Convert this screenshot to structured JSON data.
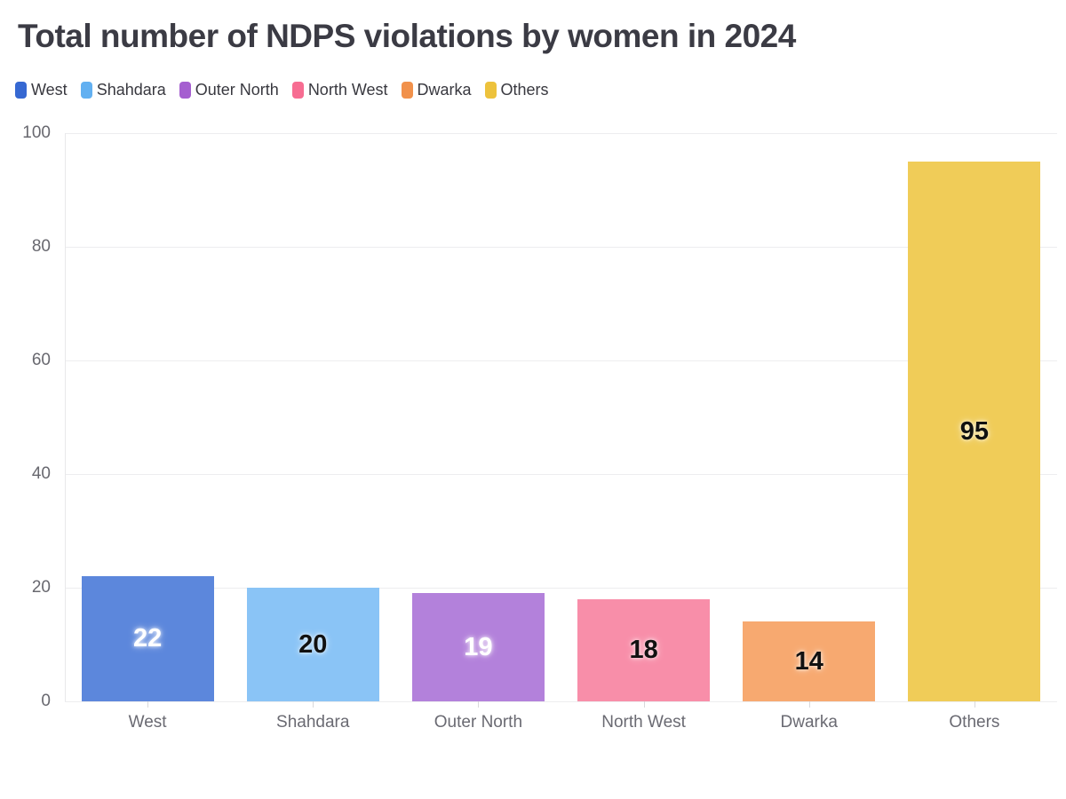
{
  "title": "Total number of NDPS violations by women in 2024",
  "chart_data": {
    "type": "bar",
    "title": "Total number of NDPS violations by women in 2024",
    "categories": [
      "West",
      "Shahdara",
      "Outer North",
      "North West",
      "Dwarka",
      "Others"
    ],
    "values": [
      22,
      20,
      19,
      18,
      14,
      95
    ],
    "legend": [
      "West",
      "Shahdara",
      "Outer North",
      "North West",
      "Dwarka",
      "Others"
    ],
    "legend_position": "top-left",
    "series_colors": [
      "#3668d2",
      "#62b0f1",
      "#a55fd0",
      "#f76d92",
      "#f1914b",
      "#edc23c"
    ],
    "bar_fill_colors": [
      "#5c87dc",
      "#8ac4f6",
      "#b381db",
      "#f88ea9",
      "#f7a970",
      "#f0cc58"
    ],
    "value_label_colors": [
      "#ffffff",
      "#111111",
      "#ffffff",
      "#111111",
      "#111111",
      "#111111"
    ],
    "xlabel": "",
    "ylabel": "",
    "ylim": [
      0,
      100
    ],
    "y_ticks": [
      0,
      20,
      40,
      60,
      80,
      100
    ],
    "grid": "horizontal-on"
  },
  "colors": {
    "background": "#ffffff",
    "title_text": "#3b3b44",
    "axis_tick_text": "#68686f",
    "category_text": "#6a6a72",
    "gridline": "#ededef",
    "axis_line": "#e8e8ea",
    "tick_mark": "#d8d8db"
  }
}
